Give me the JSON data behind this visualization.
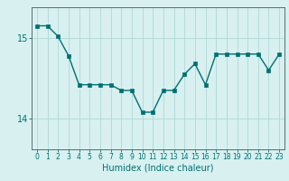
{
  "x": [
    0,
    1,
    2,
    3,
    4,
    5,
    6,
    7,
    8,
    9,
    10,
    11,
    12,
    13,
    14,
    15,
    16,
    17,
    18,
    19,
    20,
    21,
    22,
    23
  ],
  "y": [
    15.15,
    15.15,
    15.02,
    14.78,
    14.42,
    14.42,
    14.42,
    14.42,
    14.35,
    14.35,
    14.08,
    14.08,
    14.35,
    14.35,
    14.55,
    14.68,
    14.42,
    14.8,
    14.8,
    14.8,
    14.8,
    14.8,
    14.6,
    14.8
  ],
  "xlabel": "Humidex (Indice chaleur)",
  "line_color": "#007070",
  "marker_color": "#007070",
  "bg_color": "#d8f0f0",
  "grid_color": "#b0d8d8",
  "text_color": "#007070",
  "axis_color": "#507070",
  "ylim_min": 13.62,
  "ylim_max": 15.38,
  "yticks": [
    14,
    15
  ],
  "xlim_min": -0.5,
  "xlim_max": 23.5,
  "tick_fontsize": 5.5,
  "xlabel_fontsize": 7.0,
  "ytick_fontsize": 7.0,
  "linewidth": 1.0,
  "markersize": 2.5
}
